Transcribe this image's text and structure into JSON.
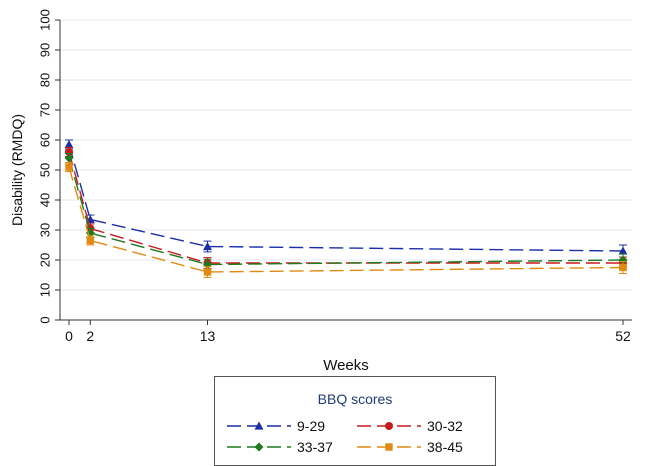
{
  "chart_data": {
    "type": "line",
    "title": "",
    "xlabel": "Weeks",
    "ylabel": "Disability (RMDQ)",
    "x": [
      0,
      2,
      13,
      52
    ],
    "x_ticks": [
      "0",
      "2",
      "13",
      "52"
    ],
    "xlim": [
      0,
      52
    ],
    "ylim": [
      0,
      100
    ],
    "y_ticks": [
      "0",
      "10",
      "20",
      "30",
      "40",
      "50",
      "60",
      "70",
      "80",
      "90",
      "100"
    ],
    "grid": true,
    "error_bars": true,
    "legend": {
      "title": "BBQ scores",
      "placement": "bottom"
    },
    "series": [
      {
        "name": "9-29",
        "values": [
          58.5,
          33.5,
          24.5,
          23.0
        ],
        "err": [
          1.5,
          1.5,
          1.8,
          2.0
        ],
        "color": "#1a2fa8",
        "marker": "triangle",
        "dash": "long"
      },
      {
        "name": "30-32",
        "values": [
          56.0,
          30.5,
          19.0,
          19.0
        ],
        "err": [
          1.5,
          1.5,
          1.8,
          2.0
        ],
        "color": "#c81a1a",
        "marker": "circle",
        "dash": "long"
      },
      {
        "name": "33-37",
        "values": [
          54.0,
          29.0,
          18.5,
          20.0
        ],
        "err": [
          1.5,
          1.5,
          1.8,
          2.0
        ],
        "color": "#1f7a1f",
        "marker": "diamond",
        "dash": "long"
      },
      {
        "name": "38-45",
        "values": [
          51.0,
          26.5,
          16.0,
          17.5
        ],
        "err": [
          1.5,
          1.5,
          1.8,
          2.0
        ],
        "color": "#e08a10",
        "marker": "square",
        "dash": "long"
      }
    ]
  }
}
